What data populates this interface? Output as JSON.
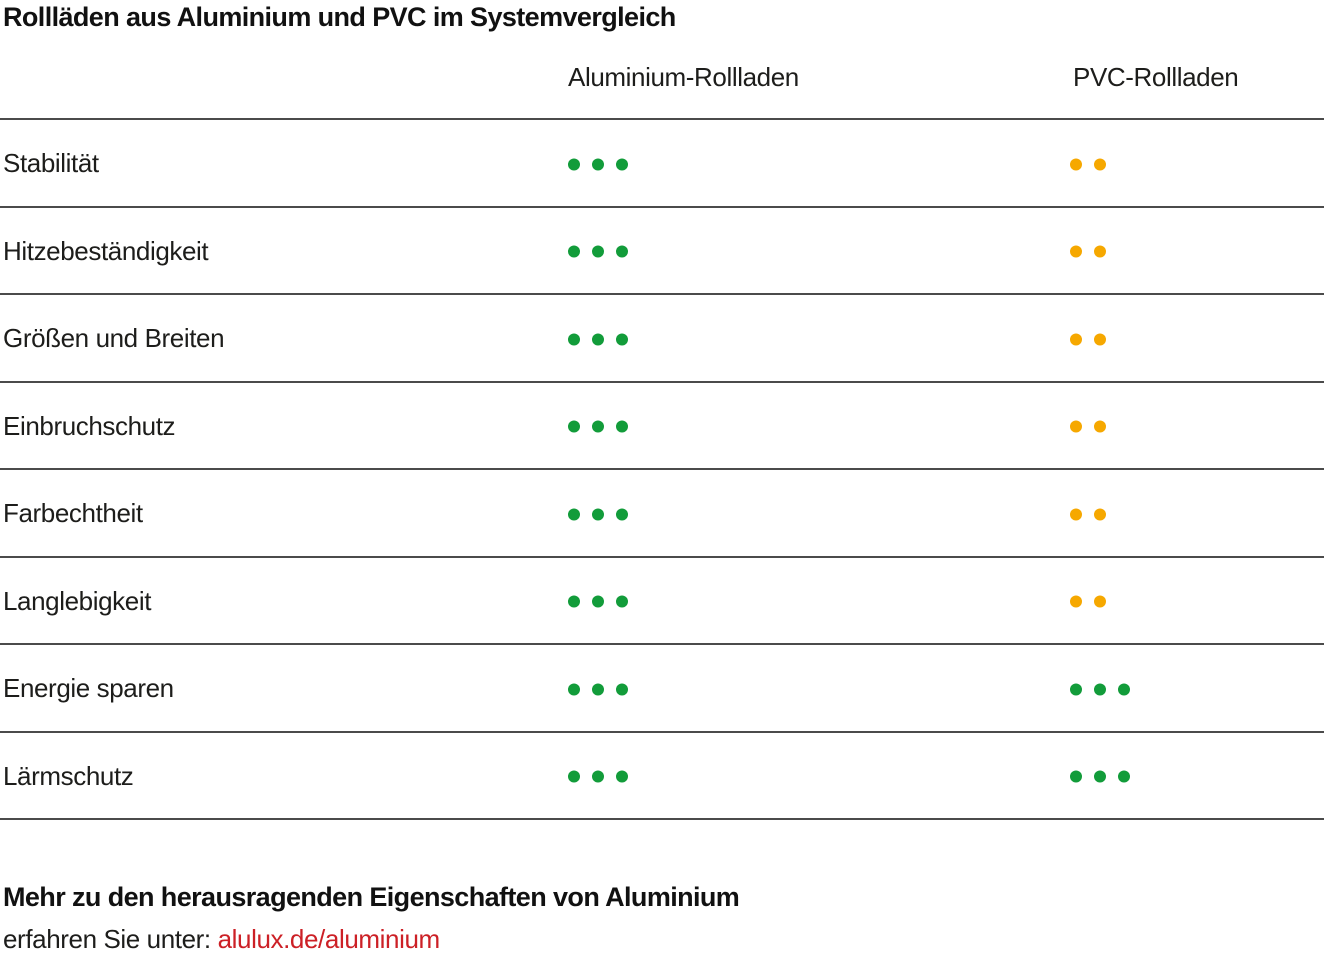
{
  "title": "Rollläden aus Aluminium und PVC im Systemvergleich",
  "columns": {
    "aluminium": "Aluminium-Rollladen",
    "pvc": "PVC-Rollladen"
  },
  "colors": {
    "green": "#129c3a",
    "orange": "#f6a800",
    "link_red": "#cc2026",
    "divider": "#4b4b4b",
    "text": "#1d1d1b"
  },
  "rows": [
    {
      "label": "Stabilität",
      "aluminium": {
        "count": 3,
        "color": "green"
      },
      "pvc": {
        "count": 2,
        "color": "orange"
      }
    },
    {
      "label": "Hitzebeständigkeit",
      "aluminium": {
        "count": 3,
        "color": "green"
      },
      "pvc": {
        "count": 2,
        "color": "orange"
      }
    },
    {
      "label": "Größen und Breiten",
      "aluminium": {
        "count": 3,
        "color": "green"
      },
      "pvc": {
        "count": 2,
        "color": "orange"
      }
    },
    {
      "label": "Einbruchschutz",
      "aluminium": {
        "count": 3,
        "color": "green"
      },
      "pvc": {
        "count": 2,
        "color": "orange"
      }
    },
    {
      "label": "Farbechtheit",
      "aluminium": {
        "count": 3,
        "color": "green"
      },
      "pvc": {
        "count": 2,
        "color": "orange"
      }
    },
    {
      "label": "Langlebigkeit",
      "aluminium": {
        "count": 3,
        "color": "green"
      },
      "pvc": {
        "count": 2,
        "color": "orange"
      }
    },
    {
      "label": "Energie sparen",
      "aluminium": {
        "count": 3,
        "color": "green"
      },
      "pvc": {
        "count": 3,
        "color": "green"
      }
    },
    {
      "label": "Lärmschutz",
      "aluminium": {
        "count": 3,
        "color": "green"
      },
      "pvc": {
        "count": 3,
        "color": "green"
      }
    }
  ],
  "footer": {
    "headline": "Mehr zu den herausragenden Eigenschaften von Aluminium",
    "prefix": "erfahren Sie unter: ",
    "link": "alulux.de/aluminium"
  },
  "chart_data": {
    "type": "table",
    "title": "Rollläden aus Aluminium und PVC im Systemvergleich",
    "columns": [
      "Aluminium-Rollladen",
      "PVC-Rollladen"
    ],
    "rows": [
      "Stabilität",
      "Hitzebeständigkeit",
      "Größen und Breiten",
      "Einbruchschutz",
      "Farbechtheit",
      "Langlebigkeit",
      "Energie sparen",
      "Lärmschutz"
    ],
    "max_dots": 3,
    "series": [
      {
        "name": "Aluminium-Rollladen",
        "values": [
          3,
          3,
          3,
          3,
          3,
          3,
          3,
          3
        ],
        "dot_colors": [
          "green",
          "green",
          "green",
          "green",
          "green",
          "green",
          "green",
          "green"
        ]
      },
      {
        "name": "PVC-Rollladen",
        "values": [
          2,
          2,
          2,
          2,
          2,
          2,
          3,
          3
        ],
        "dot_colors": [
          "orange",
          "orange",
          "orange",
          "orange",
          "orange",
          "orange",
          "green",
          "green"
        ]
      }
    ]
  }
}
